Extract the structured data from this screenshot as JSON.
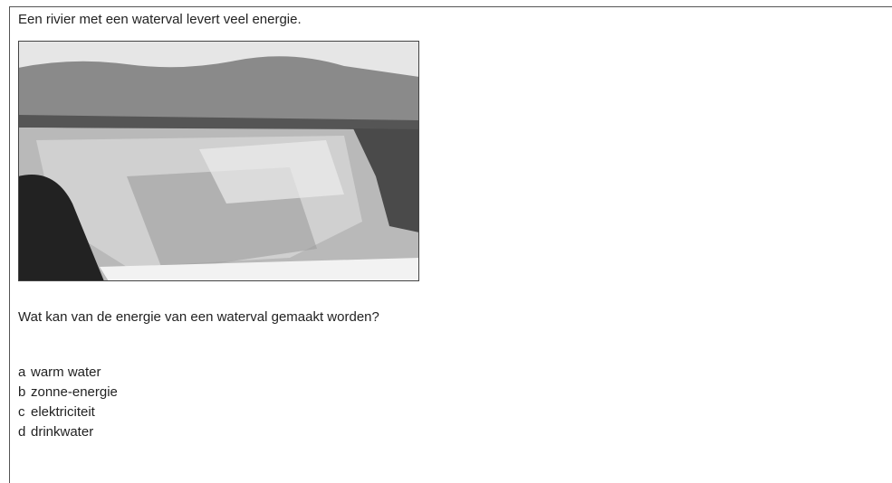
{
  "intro": "Een rivier met een waterval levert veel energie.",
  "question": "Wat kan van de energie van een waterval gemaakt worden?",
  "options": [
    {
      "letter": "a",
      "text": "warm water"
    },
    {
      "letter": "b",
      "text": "zonne-energie"
    },
    {
      "letter": "c",
      "text": "elektriciteit"
    },
    {
      "letter": "d",
      "text": "drinkwater"
    }
  ]
}
